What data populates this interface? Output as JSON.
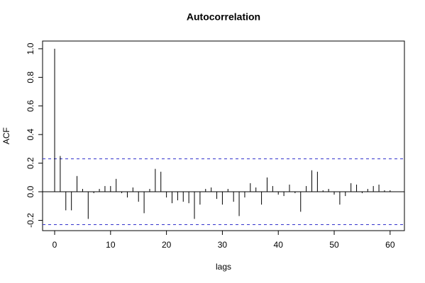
{
  "chart_data": {
    "type": "acf",
    "title": "Autocorrelation",
    "x_label": "lags",
    "y_label": "ACF",
    "x": [
      0,
      1,
      2,
      3,
      4,
      5,
      6,
      7,
      8,
      9,
      10,
      11,
      12,
      13,
      14,
      15,
      16,
      17,
      18,
      19,
      20,
      21,
      22,
      23,
      24,
      25,
      26,
      27,
      28,
      29,
      30,
      31,
      32,
      33,
      34,
      35,
      36,
      37,
      38,
      39,
      40,
      41,
      42,
      43,
      44,
      45,
      46,
      47,
      48,
      49,
      50,
      51,
      52,
      53,
      54,
      55,
      56,
      57,
      58,
      59,
      60
    ],
    "values": [
      1.0,
      0.25,
      -0.13,
      -0.13,
      0.11,
      0.02,
      -0.19,
      -0.01,
      0.02,
      0.04,
      0.04,
      0.09,
      -0.01,
      -0.04,
      0.03,
      -0.07,
      -0.15,
      0.02,
      0.16,
      0.14,
      -0.04,
      -0.08,
      -0.06,
      -0.07,
      -0.08,
      -0.19,
      -0.09,
      0.02,
      0.03,
      -0.05,
      -0.09,
      0.02,
      -0.07,
      -0.17,
      -0.04,
      0.06,
      0.03,
      -0.09,
      0.1,
      0.04,
      -0.02,
      -0.03,
      0.05,
      -0.01,
      -0.14,
      0.04,
      0.15,
      0.14,
      0.01,
      0.02,
      -0.02,
      -0.09,
      -0.03,
      0.06,
      0.05,
      -0.01,
      0.02,
      0.04,
      0.05,
      0.01,
      0.01
    ],
    "color": "#000000",
    "confidence_bounds": [
      0.23,
      -0.23
    ],
    "confidence_color": "#3333cc",
    "xlim": [
      -2.16,
      62.56
    ],
    "ylim": [
      -0.272,
      1.054
    ],
    "xticks": [
      0,
      10,
      20,
      30,
      40,
      50,
      60
    ],
    "yticks": [
      -0.2,
      {
        "value": 0,
        "label": "0.0"
      },
      0.2,
      0.4,
      0.6,
      0.8,
      {
        "value": 1,
        "label": "1.0"
      }
    ]
  }
}
